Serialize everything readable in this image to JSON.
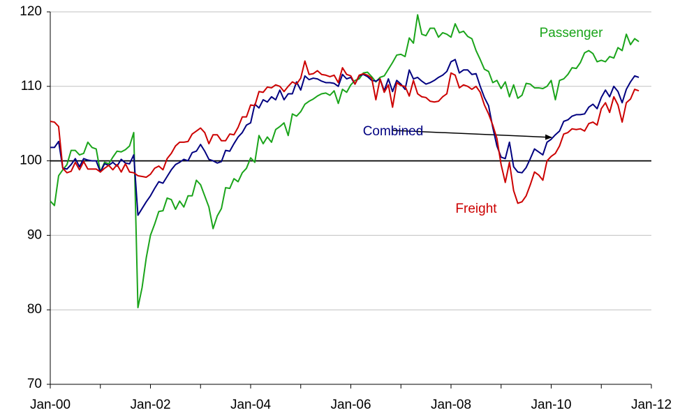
{
  "chart_data": {
    "type": "line",
    "categories": [
      "Jan-00",
      null,
      null,
      null,
      null,
      null,
      null,
      null,
      null,
      null,
      null,
      null,
      null,
      null,
      null,
      null,
      null,
      null,
      null,
      null,
      null,
      null,
      null,
      null,
      "Jan-02",
      null,
      null,
      null,
      null,
      null,
      null,
      null,
      null,
      null,
      null,
      null,
      null,
      null,
      null,
      null,
      null,
      null,
      null,
      null,
      null,
      null,
      null,
      null,
      "Jan-04",
      null,
      null,
      null,
      null,
      null,
      null,
      null,
      null,
      null,
      null,
      null,
      null,
      null,
      null,
      null,
      null,
      null,
      null,
      null,
      null,
      null,
      null,
      null,
      "Jan-06",
      null,
      null,
      null,
      null,
      null,
      null,
      null,
      null,
      null,
      null,
      null,
      null,
      null,
      null,
      null,
      null,
      null,
      null,
      null,
      null,
      null,
      null,
      null,
      "Jan-08",
      null,
      null,
      null,
      null,
      null,
      null,
      null,
      null,
      null,
      null,
      null,
      null,
      null,
      null,
      null,
      null,
      null,
      null,
      null,
      null,
      null,
      null,
      null,
      "Jan-10",
      null,
      null,
      null,
      null,
      null,
      null,
      null,
      null,
      null,
      null,
      null,
      null,
      null,
      null,
      null,
      null,
      null,
      null,
      null,
      null,
      null,
      null,
      null,
      "Jan-12"
    ],
    "series": [
      {
        "name": "Passenger",
        "color": "#1aa41a",
        "values": [
          94.6,
          94.0,
          98.0,
          98.8,
          99.5,
          101.4,
          101.4,
          100.8,
          101.0,
          102.5,
          101.8,
          101.6,
          98.5,
          99.8,
          99.6,
          100.5,
          101.3,
          101.2,
          101.5,
          102.0,
          103.8,
          80.3,
          83.0,
          87.0,
          90.0,
          91.5,
          93.2,
          93.3,
          95.0,
          94.8,
          93.5,
          94.6,
          93.8,
          95.3,
          95.3,
          97.4,
          96.8,
          95.3,
          93.8,
          90.9,
          92.6,
          93.6,
          96.4,
          96.3,
          97.6,
          97.2,
          98.4,
          99.0,
          100.4,
          99.8,
          103.4,
          102.3,
          103.2,
          102.5,
          104.2,
          104.6,
          105.1,
          103.4,
          106.3,
          106.0,
          106.6,
          107.6,
          108.0,
          108.3,
          108.7,
          109.0,
          109.1,
          108.8,
          109.4,
          107.7,
          109.6,
          109.2,
          110.2,
          110.8,
          111.0,
          111.8,
          111.9,
          111.3,
          110.6,
          111.2,
          111.4,
          112.3,
          113.2,
          114.2,
          114.3,
          114.0,
          116.5,
          115.8,
          119.6,
          117.0,
          116.8,
          117.8,
          117.8,
          116.6,
          117.2,
          117.0,
          116.6,
          118.4,
          117.2,
          117.4,
          116.7,
          116.4,
          114.8,
          113.6,
          112.3,
          112.0,
          110.5,
          110.8,
          109.7,
          110.6,
          108.6,
          110.2,
          108.4,
          108.8,
          110.4,
          110.3,
          109.8,
          109.8,
          109.7,
          110.0,
          110.8,
          108.2,
          110.8,
          111.0,
          111.6,
          112.5,
          112.4,
          113.2,
          114.5,
          114.8,
          114.4,
          113.3,
          113.5,
          113.3,
          114.0,
          113.8,
          115.2,
          114.8,
          117.0,
          115.6,
          116.4,
          116.0,
          null,
          null,
          null
        ]
      },
      {
        "name": "Combined",
        "color": "#000080",
        "values": [
          101.8,
          101.8,
          102.6,
          99.0,
          98.9,
          99.5,
          100.3,
          99.2,
          100.3,
          100.1,
          100.0,
          100.0,
          98.5,
          99.6,
          99.4,
          99.8,
          99.3,
          100.2,
          99.7,
          99.6,
          100.8,
          92.7,
          93.6,
          94.5,
          95.3,
          96.3,
          97.2,
          97.0,
          97.9,
          98.8,
          99.5,
          99.8,
          100.2,
          100.0,
          101.1,
          101.3,
          102.2,
          101.3,
          100.2,
          100.0,
          99.7,
          99.9,
          101.4,
          101.3,
          102.3,
          103.2,
          103.8,
          104.8,
          105.1,
          107.6,
          107.1,
          108.2,
          107.9,
          108.6,
          108.2,
          109.5,
          108.2,
          109.0,
          109.0,
          110.6,
          109.5,
          111.4,
          110.9,
          111.1,
          111.0,
          110.7,
          110.5,
          110.5,
          110.4,
          110.0,
          111.6,
          111.0,
          111.2,
          110.3,
          111.4,
          111.6,
          111.3,
          110.8,
          110.7,
          111.0,
          109.4,
          111.0,
          109.3,
          110.8,
          110.3,
          109.6,
          112.2,
          111.0,
          111.2,
          110.7,
          110.3,
          110.5,
          110.8,
          111.2,
          111.5,
          112.0,
          113.3,
          113.6,
          111.8,
          112.2,
          112.2,
          111.6,
          111.7,
          110.0,
          108.5,
          107.4,
          104.5,
          102.0,
          100.5,
          100.3,
          102.5,
          99.2,
          98.5,
          98.4,
          99.1,
          100.3,
          101.6,
          101.2,
          100.8,
          102.5,
          102.9,
          103.5,
          104.0,
          105.3,
          105.5,
          106.0,
          106.2,
          106.2,
          106.3,
          107.2,
          107.6,
          107.0,
          108.5,
          109.5,
          108.6,
          110.0,
          109.3,
          107.8,
          109.6,
          110.6,
          111.4,
          111.2,
          null,
          null,
          null
        ]
      },
      {
        "name": "Freight",
        "color": "#cc0000",
        "values": [
          105.3,
          105.2,
          104.6,
          99.0,
          98.4,
          98.6,
          99.8,
          98.8,
          99.9,
          98.9,
          98.9,
          98.9,
          98.5,
          99.0,
          99.4,
          98.8,
          99.5,
          98.5,
          99.6,
          98.5,
          98.4,
          98.0,
          97.9,
          97.8,
          98.2,
          99.0,
          99.3,
          98.8,
          100.3,
          101.0,
          102.0,
          102.5,
          102.5,
          102.6,
          103.6,
          104.0,
          104.4,
          103.8,
          102.3,
          103.5,
          103.5,
          102.7,
          102.7,
          103.6,
          103.5,
          104.5,
          105.9,
          105.9,
          107.5,
          107.4,
          109.3,
          109.2,
          109.9,
          109.8,
          110.2,
          110.0,
          109.3,
          110.0,
          110.6,
          110.3,
          111.1,
          113.4,
          111.6,
          111.7,
          112.1,
          111.6,
          111.5,
          111.3,
          111.5,
          110.5,
          112.5,
          111.6,
          111.4,
          110.3,
          111.5,
          111.7,
          111.5,
          111.1,
          108.2,
          111.0,
          109.2,
          110.2,
          107.2,
          110.5,
          110.1,
          110.0,
          108.7,
          110.8,
          109.0,
          108.6,
          108.5,
          108.0,
          107.9,
          108.0,
          108.6,
          109.0,
          111.8,
          111.5,
          109.8,
          110.2,
          110.0,
          109.6,
          110.0,
          109.2,
          107.5,
          106.3,
          104.8,
          103.0,
          99.5,
          97.1,
          99.8,
          96.0,
          94.3,
          94.5,
          95.3,
          96.8,
          98.5,
          98.1,
          97.4,
          100.0,
          100.6,
          101.0,
          102.0,
          103.6,
          103.8,
          104.3,
          104.2,
          104.3,
          104.0,
          105.0,
          105.2,
          104.8,
          107.0,
          107.8,
          106.5,
          108.6,
          107.5,
          105.2,
          107.8,
          108.3,
          109.6,
          109.4,
          null,
          null,
          null
        ]
      }
    ],
    "ylim": [
      70,
      120
    ],
    "yticks": [
      70,
      80,
      90,
      100,
      110,
      120
    ],
    "grid": true,
    "hline": 100
  }
}
